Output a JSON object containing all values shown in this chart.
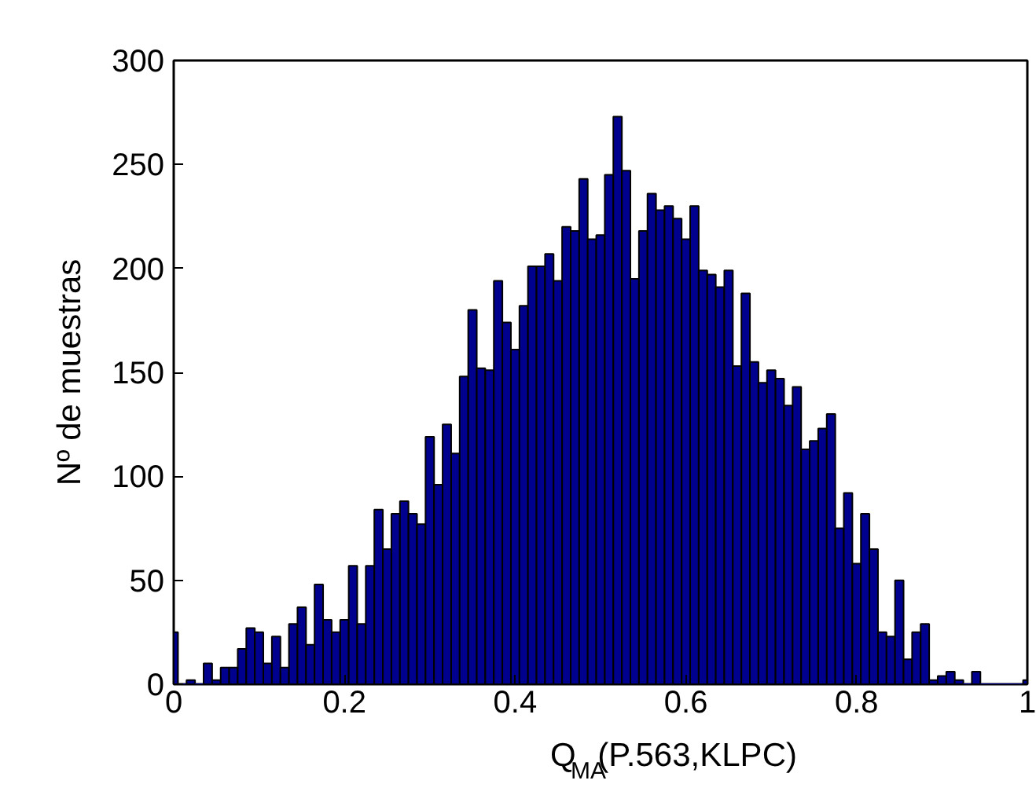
{
  "chart_data": {
    "type": "histogram",
    "xlabel": "Q$_{MA}$(P.563,KLPC)",
    "ylabel": "Nº de muestras",
    "color": "#00008f",
    "bins": [
      0,
      0.005,
      0.015,
      0.025,
      0.035,
      0.045,
      0.055,
      0.065,
      0.075,
      0.085,
      0.095,
      0.105,
      0.115,
      0.125,
      0.135,
      0.145,
      0.155,
      0.165,
      0.175,
      0.185,
      0.195,
      0.205,
      0.215,
      0.225,
      0.235,
      0.245,
      0.255,
      0.265,
      0.275,
      0.285,
      0.295,
      0.305,
      0.315,
      0.325,
      0.335,
      0.345,
      0.355,
      0.365,
      0.375,
      0.385,
      0.395,
      0.405,
      0.415,
      0.425,
      0.435,
      0.445,
      0.455,
      0.465,
      0.475,
      0.485,
      0.495,
      0.505,
      0.515,
      0.525,
      0.535,
      0.545,
      0.555,
      0.565,
      0.575,
      0.585,
      0.595,
      0.605,
      0.615,
      0.625,
      0.635,
      0.645,
      0.655,
      0.665,
      0.675,
      0.685,
      0.695,
      0.705,
      0.715,
      0.725,
      0.735,
      0.745,
      0.755,
      0.765,
      0.775,
      0.785,
      0.795,
      0.805,
      0.815,
      0.825,
      0.835,
      0.845,
      0.855,
      0.865,
      0.875,
      0.885,
      0.895,
      0.905,
      0.915,
      0.925,
      0.935,
      0.945,
      0.955,
      0.965,
      0.975,
      0.985,
      0.995,
      1
    ],
    "values": [
      25,
      0,
      2,
      0,
      10,
      2,
      8,
      8,
      17,
      27,
      25,
      10,
      23,
      8,
      29,
      37,
      19,
      48,
      31,
      25,
      31,
      57,
      29,
      57,
      84,
      65,
      82,
      88,
      82,
      77,
      119,
      96,
      125,
      111,
      148,
      180,
      152,
      151,
      194,
      174,
      161,
      182,
      201,
      201,
      207,
      194,
      220,
      218,
      243,
      214,
      216,
      245,
      273,
      247,
      195,
      218,
      236,
      228,
      230,
      224,
      214,
      230,
      199,
      197,
      191,
      199,
      153,
      188,
      155,
      145,
      151,
      147,
      134,
      143,
      113,
      117,
      123,
      130,
      75,
      92,
      58,
      82,
      65,
      25,
      23,
      50,
      12,
      25,
      29,
      2,
      4,
      6,
      2,
      0,
      6,
      0,
      0,
      0,
      0,
      0,
      2
    ],
    "xlim": [
      0,
      1
    ],
    "ylim": [
      0,
      300
    ],
    "xticks": [
      0,
      0.2,
      0.4,
      0.6,
      0.8,
      1
    ],
    "yticks": [
      0,
      50,
      100,
      150,
      200,
      250,
      300
    ],
    "grid": false
  }
}
